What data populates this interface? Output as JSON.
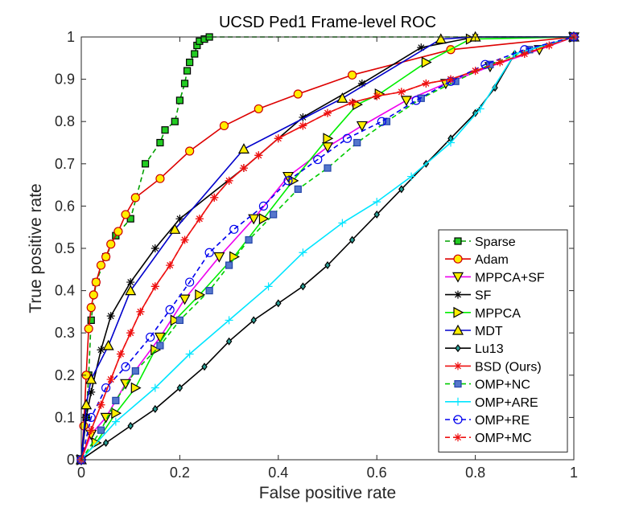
{
  "chart_data": {
    "type": "line",
    "title": "UCSD Ped1 Frame-level ROC",
    "xlabel": "False positive rate",
    "ylabel": "True positive rate",
    "xlim": [
      0,
      1
    ],
    "ylim": [
      0,
      1
    ],
    "xticks": [
      "0",
      "0.2",
      "0.4",
      "0.6",
      "0.8",
      "1"
    ],
    "yticks": [
      "0",
      "0.1",
      "0.2",
      "0.3",
      "0.4",
      "0.5",
      "0.6",
      "0.7",
      "0.8",
      "0.9",
      "1"
    ],
    "grid": false,
    "legend_position": "bottom-right",
    "series": [
      {
        "name": "Sparse",
        "color": "#00a000",
        "marker": "square",
        "marker_fill": "#22cc22",
        "dash": true,
        "points": [
          [
            0,
            0
          ],
          [
            0.01,
            0.1
          ],
          [
            0.015,
            0.2
          ],
          [
            0.02,
            0.33
          ],
          [
            0.03,
            0.42
          ],
          [
            0.05,
            0.48
          ],
          [
            0.07,
            0.53
          ],
          [
            0.1,
            0.57
          ],
          [
            0.13,
            0.7
          ],
          [
            0.16,
            0.75
          ],
          [
            0.17,
            0.78
          ],
          [
            0.19,
            0.8
          ],
          [
            0.2,
            0.85
          ],
          [
            0.21,
            0.89
          ],
          [
            0.215,
            0.92
          ],
          [
            0.22,
            0.94
          ],
          [
            0.23,
            0.96
          ],
          [
            0.235,
            0.98
          ],
          [
            0.24,
            0.99
          ],
          [
            0.25,
            0.995
          ],
          [
            0.26,
            1.0
          ],
          [
            1,
            1
          ]
        ]
      },
      {
        "name": "Adam",
        "color": "#dd0000",
        "marker": "circle",
        "marker_fill": "#ffee00",
        "dash": false,
        "points": [
          [
            0,
            0
          ],
          [
            0.005,
            0.08
          ],
          [
            0.01,
            0.2
          ],
          [
            0.015,
            0.31
          ],
          [
            0.02,
            0.36
          ],
          [
            0.025,
            0.39
          ],
          [
            0.03,
            0.42
          ],
          [
            0.04,
            0.46
          ],
          [
            0.05,
            0.48
          ],
          [
            0.06,
            0.51
          ],
          [
            0.075,
            0.54
          ],
          [
            0.09,
            0.58
          ],
          [
            0.11,
            0.62
          ],
          [
            0.16,
            0.665
          ],
          [
            0.22,
            0.73
          ],
          [
            0.29,
            0.79
          ],
          [
            0.36,
            0.83
          ],
          [
            0.44,
            0.865
          ],
          [
            0.55,
            0.91
          ],
          [
            0.75,
            0.97
          ],
          [
            1,
            1
          ]
        ]
      },
      {
        "name": "MPPCA+SF",
        "color": "#ee00ee",
        "marker": "triangle-down",
        "marker_fill": "#ffee00",
        "dash": false,
        "points": [
          [
            0,
            0
          ],
          [
            0.02,
            0.06
          ],
          [
            0.05,
            0.1
          ],
          [
            0.09,
            0.18
          ],
          [
            0.16,
            0.29
          ],
          [
            0.21,
            0.38
          ],
          [
            0.28,
            0.48
          ],
          [
            0.35,
            0.57
          ],
          [
            0.42,
            0.67
          ],
          [
            0.5,
            0.74
          ],
          [
            0.57,
            0.79
          ],
          [
            0.66,
            0.85
          ],
          [
            0.74,
            0.89
          ],
          [
            0.83,
            0.93
          ],
          [
            0.93,
            0.97
          ],
          [
            1,
            1
          ]
        ]
      },
      {
        "name": "SF",
        "color": "#000000",
        "marker": "star",
        "marker_fill": "#000000",
        "dash": false,
        "points": [
          [
            0,
            0
          ],
          [
            0.01,
            0.1
          ],
          [
            0.02,
            0.16
          ],
          [
            0.04,
            0.26
          ],
          [
            0.06,
            0.34
          ],
          [
            0.1,
            0.42
          ],
          [
            0.15,
            0.5
          ],
          [
            0.2,
            0.57
          ],
          [
            0.33,
            0.69
          ],
          [
            0.45,
            0.81
          ],
          [
            0.57,
            0.89
          ],
          [
            0.69,
            0.975
          ],
          [
            0.8,
            1.0
          ],
          [
            1,
            1
          ]
        ]
      },
      {
        "name": "MPPCA",
        "color": "#00ee00",
        "marker": "triangle-right",
        "marker_fill": "#ffee00",
        "dash": false,
        "points": [
          [
            0,
            0
          ],
          [
            0.03,
            0.04
          ],
          [
            0.07,
            0.11
          ],
          [
            0.11,
            0.17
          ],
          [
            0.15,
            0.26
          ],
          [
            0.19,
            0.33
          ],
          [
            0.24,
            0.39
          ],
          [
            0.31,
            0.48
          ],
          [
            0.37,
            0.57
          ],
          [
            0.43,
            0.66
          ],
          [
            0.5,
            0.76
          ],
          [
            0.56,
            0.84
          ],
          [
            0.605,
            0.865
          ],
          [
            0.7,
            0.94
          ],
          [
            0.79,
            0.995
          ],
          [
            1,
            1
          ]
        ]
      },
      {
        "name": "MDT",
        "color": "#0000cc",
        "marker": "triangle-up",
        "marker_fill": "#ffee00",
        "dash": false,
        "points": [
          [
            0,
            0
          ],
          [
            0.01,
            0.13
          ],
          [
            0.02,
            0.19
          ],
          [
            0.055,
            0.27
          ],
          [
            0.1,
            0.4
          ],
          [
            0.19,
            0.545
          ],
          [
            0.33,
            0.735
          ],
          [
            0.53,
            0.855
          ],
          [
            0.73,
            0.995
          ],
          [
            0.8,
            1.0
          ],
          [
            1,
            1
          ]
        ]
      },
      {
        "name": "Lu13",
        "color": "#000000",
        "marker": "diamond",
        "marker_fill": "#2aa198",
        "dash": false,
        "points": [
          [
            0,
            0
          ],
          [
            0.05,
            0.04
          ],
          [
            0.1,
            0.08
          ],
          [
            0.15,
            0.12
          ],
          [
            0.2,
            0.17
          ],
          [
            0.25,
            0.22
          ],
          [
            0.3,
            0.28
          ],
          [
            0.35,
            0.33
          ],
          [
            0.4,
            0.37
          ],
          [
            0.45,
            0.41
          ],
          [
            0.5,
            0.46
          ],
          [
            0.55,
            0.52
          ],
          [
            0.6,
            0.58
          ],
          [
            0.65,
            0.64
          ],
          [
            0.7,
            0.7
          ],
          [
            0.75,
            0.76
          ],
          [
            0.8,
            0.82
          ],
          [
            0.84,
            0.88
          ],
          [
            0.88,
            0.96
          ],
          [
            1,
            1
          ]
        ]
      },
      {
        "name": "BSD (Ours)",
        "color": "#ee1111",
        "marker": "star",
        "marker_fill": "#ee1111",
        "dash": false,
        "points": [
          [
            0,
            0
          ],
          [
            0.02,
            0.07
          ],
          [
            0.04,
            0.13
          ],
          [
            0.06,
            0.19
          ],
          [
            0.08,
            0.25
          ],
          [
            0.1,
            0.3
          ],
          [
            0.12,
            0.35
          ],
          [
            0.15,
            0.41
          ],
          [
            0.18,
            0.46
          ],
          [
            0.21,
            0.52
          ],
          [
            0.24,
            0.57
          ],
          [
            0.27,
            0.62
          ],
          [
            0.3,
            0.66
          ],
          [
            0.33,
            0.69
          ],
          [
            0.36,
            0.72
          ],
          [
            0.4,
            0.76
          ],
          [
            0.45,
            0.79
          ],
          [
            0.5,
            0.82
          ],
          [
            0.55,
            0.845
          ],
          [
            0.6,
            0.86
          ],
          [
            0.65,
            0.87
          ],
          [
            0.7,
            0.89
          ],
          [
            0.75,
            0.9
          ],
          [
            0.8,
            0.92
          ],
          [
            0.85,
            0.94
          ],
          [
            0.9,
            0.96
          ],
          [
            0.95,
            0.98
          ],
          [
            1,
            1
          ]
        ]
      },
      {
        "name": "OMP+NC",
        "color": "#00cc00",
        "marker": "square",
        "marker_fill": "#5577cc",
        "dash": true,
        "points": [
          [
            0,
            0
          ],
          [
            0.04,
            0.07
          ],
          [
            0.07,
            0.14
          ],
          [
            0.11,
            0.21
          ],
          [
            0.16,
            0.27
          ],
          [
            0.2,
            0.33
          ],
          [
            0.26,
            0.4
          ],
          [
            0.3,
            0.46
          ],
          [
            0.34,
            0.52
          ],
          [
            0.39,
            0.58
          ],
          [
            0.44,
            0.64
          ],
          [
            0.5,
            0.69
          ],
          [
            0.56,
            0.75
          ],
          [
            0.62,
            0.8
          ],
          [
            0.69,
            0.855
          ],
          [
            0.76,
            0.895
          ],
          [
            0.83,
            0.935
          ],
          [
            0.91,
            0.97
          ],
          [
            1,
            1
          ]
        ]
      },
      {
        "name": "OMP+ARE",
        "color": "#00e5ff",
        "marker": "plus",
        "marker_fill": "#00e5ff",
        "dash": false,
        "points": [
          [
            0,
            0
          ],
          [
            0.07,
            0.09
          ],
          [
            0.15,
            0.17
          ],
          [
            0.22,
            0.25
          ],
          [
            0.3,
            0.33
          ],
          [
            0.38,
            0.41
          ],
          [
            0.45,
            0.49
          ],
          [
            0.53,
            0.56
          ],
          [
            0.6,
            0.61
          ],
          [
            0.67,
            0.67
          ],
          [
            0.75,
            0.75
          ],
          [
            0.81,
            0.83
          ],
          [
            0.88,
            0.96
          ],
          [
            1,
            1
          ]
        ]
      },
      {
        "name": "OMP+RE",
        "color": "#0000ee",
        "marker": "circle",
        "marker_fill": "none",
        "dash": true,
        "points": [
          [
            0,
            0
          ],
          [
            0.02,
            0.1
          ],
          [
            0.05,
            0.17
          ],
          [
            0.09,
            0.22
          ],
          [
            0.14,
            0.29
          ],
          [
            0.18,
            0.355
          ],
          [
            0.22,
            0.42
          ],
          [
            0.26,
            0.49
          ],
          [
            0.31,
            0.545
          ],
          [
            0.37,
            0.6
          ],
          [
            0.42,
            0.66
          ],
          [
            0.48,
            0.71
          ],
          [
            0.54,
            0.76
          ],
          [
            0.61,
            0.8
          ],
          [
            0.68,
            0.85
          ],
          [
            0.75,
            0.895
          ],
          [
            0.82,
            0.935
          ],
          [
            0.9,
            0.97
          ],
          [
            1,
            1
          ]
        ]
      },
      {
        "name": "OMP+MC",
        "color": "#ee1111",
        "marker": "star",
        "marker_fill": "#ee1111",
        "dash": true,
        "points": [
          [
            0,
            0
          ],
          [
            0.02,
            0.07
          ],
          [
            0.04,
            0.13
          ],
          [
            0.06,
            0.19
          ],
          [
            0.08,
            0.25
          ],
          [
            0.1,
            0.3
          ],
          [
            0.12,
            0.35
          ],
          [
            0.15,
            0.41
          ],
          [
            0.18,
            0.46
          ],
          [
            0.21,
            0.52
          ],
          [
            0.24,
            0.57
          ],
          [
            0.27,
            0.62
          ],
          [
            0.3,
            0.66
          ],
          [
            0.33,
            0.69
          ],
          [
            0.36,
            0.72
          ],
          [
            0.4,
            0.76
          ],
          [
            0.45,
            0.79
          ],
          [
            0.5,
            0.82
          ],
          [
            0.55,
            0.845
          ],
          [
            0.6,
            0.86
          ],
          [
            0.65,
            0.87
          ],
          [
            0.7,
            0.89
          ],
          [
            0.75,
            0.9
          ],
          [
            0.8,
            0.92
          ],
          [
            0.85,
            0.94
          ],
          [
            0.9,
            0.96
          ],
          [
            0.95,
            0.98
          ],
          [
            1,
            1
          ]
        ]
      }
    ]
  }
}
